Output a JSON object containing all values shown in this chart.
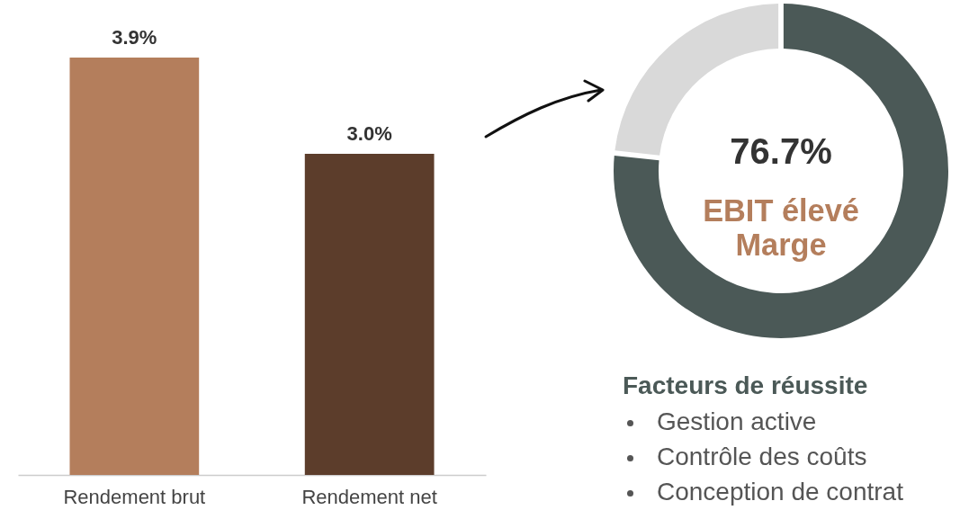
{
  "chart_data": [
    {
      "type": "bar",
      "categories": [
        "Rendement brut",
        "Rendement net"
      ],
      "values": [
        3.9,
        3.0
      ],
      "colors": [
        "#b47e5c",
        "#5c3d2b"
      ],
      "value_labels": [
        "3.9%",
        "3.0%"
      ],
      "tick_labels": "x"
    },
    {
      "type": "donut",
      "categories": [
        null,
        null
      ],
      "values": [
        76.7,
        23.3
      ],
      "colors": [
        "#4b5957",
        "#d9d9d9"
      ],
      "value_labels": [
        "76.7%",
        null
      ],
      "annotations": [
        "EBIT élevé",
        "Marge"
      ]
    },
    {
      "type": "other",
      "title": "Facteurs de réussite",
      "annotations": [
        "Gestion active",
        "Contrôle des coûts",
        "Conception de contrat"
      ]
    }
  ]
}
